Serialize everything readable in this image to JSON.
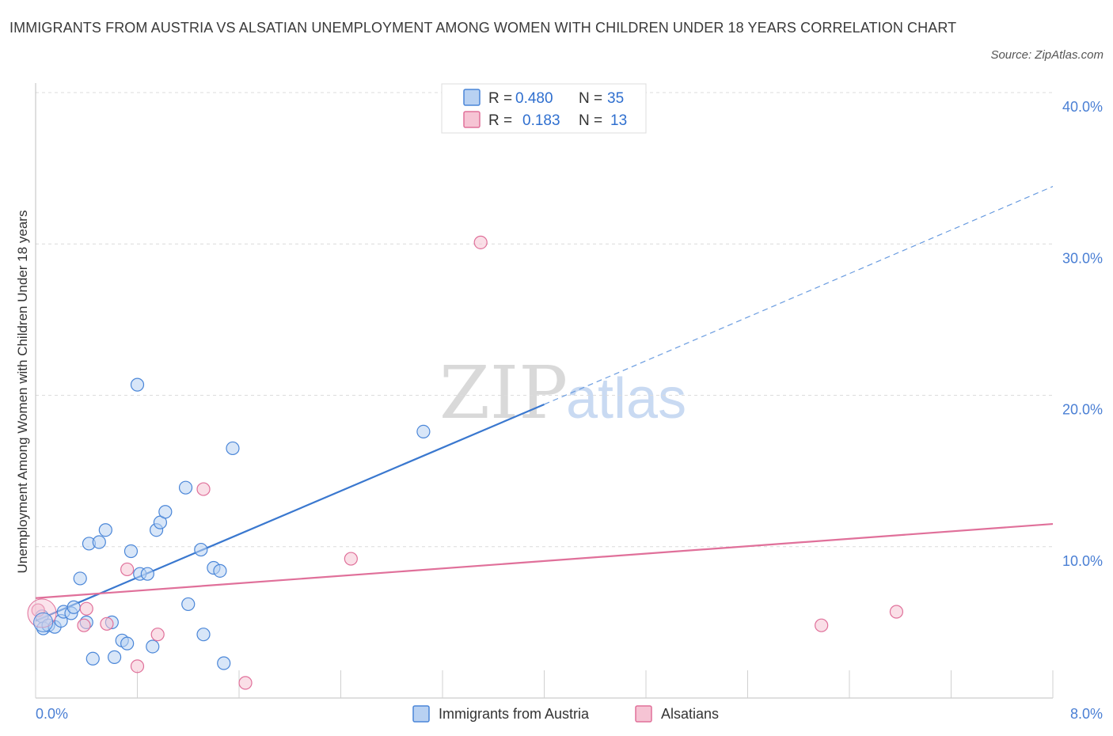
{
  "title": "IMMIGRANTS FROM AUSTRIA VS ALSATIAN UNEMPLOYMENT AMONG WOMEN WITH CHILDREN UNDER 18 YEARS CORRELATION CHART",
  "source": "Source: ZipAtlas.com",
  "watermark": {
    "zip": "ZIP",
    "atlas": "atlas"
  },
  "colors": {
    "blue": "#4a86d8",
    "blue_fill": "#b8d1f2",
    "pink": "#e0709a",
    "pink_fill": "#f6c4d4",
    "axis_text": "#4a7fd4"
  },
  "legend": {
    "rows": [
      {
        "r_label": "R =",
        "r_value": "0.480",
        "n_label": "N =",
        "n_value": "35"
      },
      {
        "r_label": "R =",
        "r_value": "0.183",
        "n_label": "N =",
        "n_value": "13"
      }
    ]
  },
  "bottom_legend": [
    "Immigrants from Austria",
    "Alsatians"
  ],
  "chart_data": {
    "type": "scatter",
    "title": "IMMIGRANTS FROM AUSTRIA VS ALSATIAN UNEMPLOYMENT AMONG WOMEN WITH CHILDREN UNDER 18 YEARS CORRELATION CHART",
    "xlabel": "",
    "ylabel": "Unemployment Among Women with Children Under 18 years",
    "xlim": [
      0,
      8
    ],
    "ylim": [
      0,
      40
    ],
    "x_tick_labels": [
      "0.0%",
      "8.0%"
    ],
    "y_tick_labels": [
      "10.0%",
      "20.0%",
      "30.0%",
      "40.0%"
    ],
    "y_ticks": [
      10,
      20,
      30,
      40
    ],
    "series": [
      {
        "name": "Immigrants from Austria",
        "R": 0.48,
        "N": 35,
        "points": [
          [
            0.05,
            5.4
          ],
          [
            0.06,
            4.6
          ],
          [
            0.1,
            4.8
          ],
          [
            0.15,
            4.7
          ],
          [
            0.2,
            5.1
          ],
          [
            0.22,
            5.7
          ],
          [
            0.28,
            5.6
          ],
          [
            0.3,
            6.0
          ],
          [
            0.35,
            7.9
          ],
          [
            0.4,
            5.0
          ],
          [
            0.42,
            10.2
          ],
          [
            0.45,
            2.6
          ],
          [
            0.5,
            10.3
          ],
          [
            0.55,
            11.1
          ],
          [
            0.6,
            5.0
          ],
          [
            0.62,
            2.7
          ],
          [
            0.68,
            3.8
          ],
          [
            0.72,
            3.6
          ],
          [
            0.75,
            9.7
          ],
          [
            0.8,
            20.7
          ],
          [
            0.82,
            8.2
          ],
          [
            0.88,
            8.2
          ],
          [
            0.92,
            3.4
          ],
          [
            0.95,
            11.1
          ],
          [
            0.98,
            11.6
          ],
          [
            1.02,
            12.3
          ],
          [
            1.2,
            6.2
          ],
          [
            1.18,
            13.9
          ],
          [
            1.3,
            9.8
          ],
          [
            1.32,
            4.2
          ],
          [
            1.4,
            8.6
          ],
          [
            1.45,
            8.4
          ],
          [
            1.48,
            2.3
          ],
          [
            1.55,
            16.5
          ],
          [
            3.05,
            17.6
          ]
        ],
        "trend": {
          "x": [
            0.0,
            4.0
          ],
          "y": [
            5.1,
            19.4
          ],
          "extended_x": [
            4.0,
            8.0
          ],
          "extended_y": [
            19.4,
            33.8
          ]
        }
      },
      {
        "name": "Alsatians",
        "R": 0.183,
        "N": 13,
        "points": [
          [
            0.02,
            5.8
          ],
          [
            0.38,
            4.8
          ],
          [
            0.4,
            5.9
          ],
          [
            0.56,
            4.9
          ],
          [
            0.72,
            8.5
          ],
          [
            0.8,
            2.1
          ],
          [
            0.96,
            4.2
          ],
          [
            1.32,
            13.8
          ],
          [
            1.65,
            1.0
          ],
          [
            2.48,
            9.2
          ],
          [
            3.5,
            30.1
          ],
          [
            6.18,
            4.8
          ],
          [
            6.77,
            5.7
          ]
        ],
        "trend": {
          "x": [
            0.0,
            8.0
          ],
          "y": [
            6.6,
            11.5
          ]
        }
      }
    ]
  }
}
